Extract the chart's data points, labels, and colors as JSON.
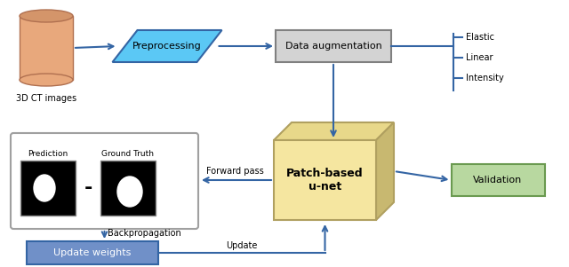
{
  "fig_width": 6.4,
  "fig_height": 3.01,
  "bg_color": "#ffffff",
  "arrow_color": "#3465a4",
  "arrow_lw": 1.5,
  "cylinder_color": "#e8a87c",
  "cylinder_edge_color": "#b07050",
  "preprocessing_color": "#5bc8f5",
  "preprocessing_edge_color": "#3465a4",
  "data_aug_color": "#d3d3d3",
  "data_aug_edge_color": "#808080",
  "patch_unet_color": "#f5e6a0",
  "patch_unet_top_color": "#e8d88a",
  "patch_unet_right_color": "#c8b870",
  "patch_unet_edge_color": "#b0a060",
  "validation_color": "#b8d8a0",
  "validation_edge_color": "#6a9a50",
  "update_weights_color": "#7090c8",
  "update_weights_edge_color": "#3465a4",
  "ct_images_label": "3D CT images",
  "preprocessing_label": "Preprocessing",
  "data_aug_label": "Data augmentation",
  "elastic_label": "Elastic",
  "linear_label": "Linear",
  "intensity_label": "Intensity",
  "patch_unet_label": "Patch-based\nu-net",
  "validation_label": "Validation",
  "prediction_label": "Prediction",
  "ground_truth_label": "Ground Truth",
  "forward_pass_label": "Forward pass",
  "backprop_label": "Backpropagation",
  "update_label": "Update",
  "update_weights_label": "Update weights",
  "font_size": 7,
  "font_size_box": 8
}
